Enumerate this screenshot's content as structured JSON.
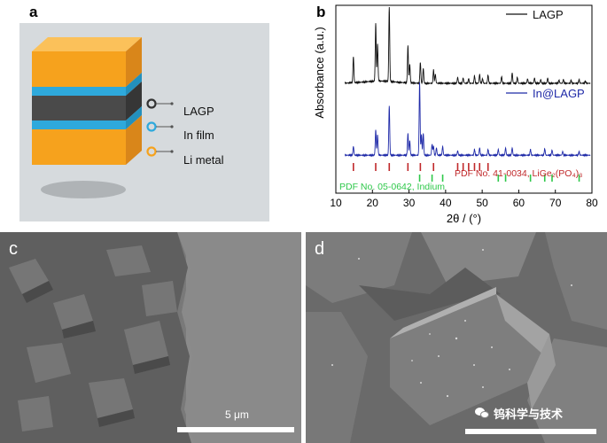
{
  "panels": {
    "a": {
      "letter": "a",
      "legend": [
        "LAGP",
        "In film",
        "Li metal"
      ],
      "colors": {
        "background": "#d6dadd",
        "li_metal": "#f6a21d",
        "in_film": "#2ea9dc",
        "lagp": "#4a4a4a",
        "lagp_ring": "#333333",
        "in_ring": "#2ea9dc",
        "li_ring": "#f6a21d"
      }
    },
    "b": {
      "letter": "b"
    },
    "c": {
      "letter": "c",
      "scale_label": "5 μm"
    },
    "d": {
      "letter": "d",
      "watermark_text": "钨科学与技术"
    }
  },
  "chart_data": {
    "type": "line",
    "xlabel": "2θ / (°)",
    "ylabel": "Absorbance (a.u.)",
    "xlim": [
      10,
      80
    ],
    "xticks": [
      10,
      20,
      30,
      40,
      50,
      60,
      70,
      80
    ],
    "series": [
      {
        "name": "LAGP",
        "color": "#111111",
        "peaks": [
          [
            14.8,
            0.35
          ],
          [
            20.9,
            0.78
          ],
          [
            21.4,
            0.5
          ],
          [
            24.6,
            1.0
          ],
          [
            29.7,
            0.5
          ],
          [
            30.2,
            0.25
          ],
          [
            33.1,
            0.28
          ],
          [
            33.9,
            0.2
          ],
          [
            36.7,
            0.18
          ],
          [
            37.2,
            0.12
          ],
          [
            43.3,
            0.08
          ],
          [
            44.8,
            0.07
          ],
          [
            46.3,
            0.06
          ],
          [
            47.9,
            0.1
          ],
          [
            49.3,
            0.12
          ],
          [
            50.1,
            0.06
          ],
          [
            51.6,
            0.11
          ],
          [
            55.3,
            0.09
          ],
          [
            58.2,
            0.14
          ],
          [
            59.6,
            0.08
          ],
          [
            62.4,
            0.06
          ],
          [
            64.3,
            0.07
          ],
          [
            66.0,
            0.05
          ],
          [
            67.9,
            0.07
          ],
          [
            71.0,
            0.04
          ],
          [
            72.2,
            0.05
          ],
          [
            74.3,
            0.04
          ],
          [
            76.5,
            0.05
          ],
          [
            78.2,
            0.03
          ]
        ]
      },
      {
        "name": "In@LAGP",
        "color": "#1f2aa8",
        "peaks": [
          [
            14.8,
            0.12
          ],
          [
            20.9,
            0.35
          ],
          [
            21.4,
            0.28
          ],
          [
            24.6,
            0.68
          ],
          [
            29.7,
            0.3
          ],
          [
            30.2,
            0.2
          ],
          [
            32.9,
            1.0
          ],
          [
            33.4,
            0.28
          ],
          [
            33.9,
            0.3
          ],
          [
            36.3,
            0.15
          ],
          [
            36.7,
            0.12
          ],
          [
            37.5,
            0.1
          ],
          [
            39.2,
            0.12
          ],
          [
            43.3,
            0.06
          ],
          [
            47.9,
            0.08
          ],
          [
            49.3,
            0.1
          ],
          [
            51.6,
            0.08
          ],
          [
            54.4,
            0.08
          ],
          [
            56.4,
            0.1
          ],
          [
            58.2,
            0.1
          ],
          [
            63.2,
            0.08
          ],
          [
            67.1,
            0.09
          ],
          [
            69.1,
            0.07
          ],
          [
            72.0,
            0.05
          ],
          [
            76.5,
            0.05
          ]
        ]
      }
    ],
    "references": [
      {
        "name": "PDF No. 41-0034, LiGe₂(PO₄)₃",
        "color": "#c0282a",
        "positions": [
          14.8,
          20.9,
          24.6,
          29.7,
          33.1,
          36.7,
          43.3,
          44.8,
          46.3,
          47.9,
          49.3,
          51.6
        ]
      },
      {
        "name": "PDF No. 05-0642, Indium",
        "color": "#2ec84a",
        "positions": [
          32.9,
          36.3,
          39.2,
          54.4,
          56.4,
          63.2,
          67.1,
          69.1,
          76.5
        ]
      }
    ],
    "reference_label_red": "PDF No. 41-0034, LiGe₂(PO₄)₃",
    "reference_label_green": "PDF No. 05-0642, Indium",
    "grid": false,
    "legend_placement": "top-right"
  }
}
